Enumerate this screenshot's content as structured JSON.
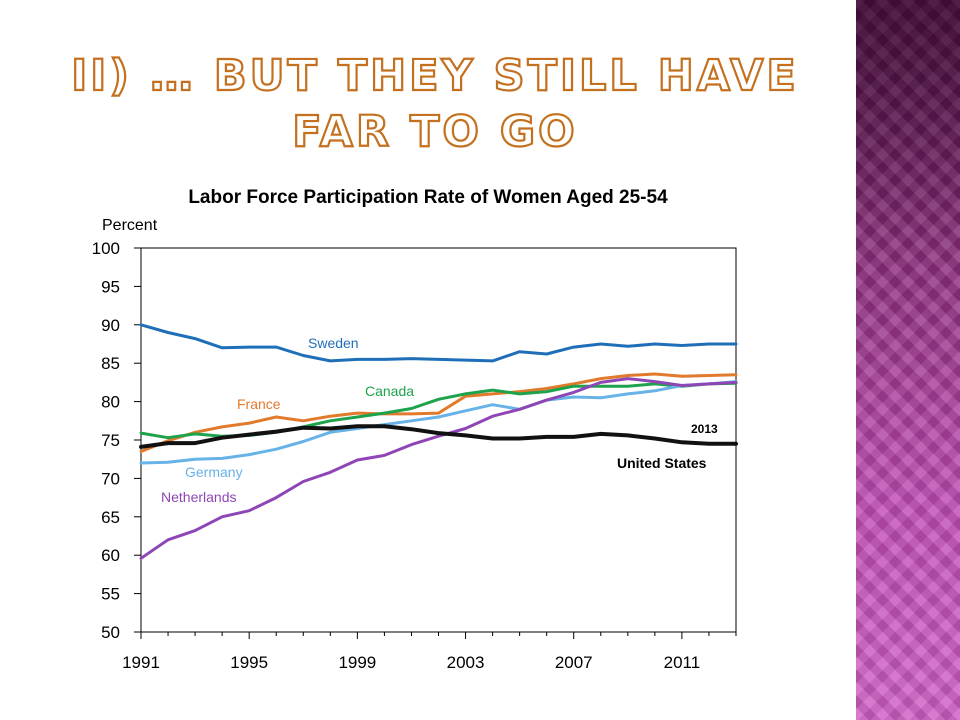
{
  "slide": {
    "title": "II) … But they still have far to go",
    "side_panel_color": "#b040a8"
  },
  "chart_data": {
    "type": "line",
    "title": "Labor Force Participation Rate of Women Aged 25-54",
    "ylabel": "Percent",
    "xlabel": "",
    "xlim": [
      1991,
      2013
    ],
    "ylim": [
      50,
      100
    ],
    "xticks": [
      1991,
      1995,
      1999,
      2003,
      2007,
      2011
    ],
    "yticks": [
      50,
      55,
      60,
      65,
      70,
      75,
      80,
      85,
      90,
      95,
      100
    ],
    "grid": false,
    "x": [
      1991,
      1992,
      1993,
      1994,
      1995,
      1996,
      1997,
      1998,
      1999,
      2000,
      2001,
      2002,
      2003,
      2004,
      2005,
      2006,
      2007,
      2008,
      2009,
      2010,
      2011,
      2012,
      2013
    ],
    "end_label": "2013",
    "series": [
      {
        "name": "Sweden",
        "color": "#1f6fb8",
        "values": [
          90.0,
          89.0,
          88.2,
          87.0,
          87.1,
          87.1,
          86.0,
          85.3,
          85.5,
          85.5,
          85.6,
          85.5,
          85.4,
          85.3,
          86.5,
          86.2,
          87.1,
          87.5,
          87.2,
          87.5,
          87.3,
          87.5,
          87.5
        ]
      },
      {
        "name": "France",
        "color": "#e27a2c",
        "values": [
          73.5,
          74.9,
          76.0,
          76.7,
          77.2,
          78.0,
          77.5,
          78.1,
          78.5,
          78.4,
          78.4,
          78.5,
          80.7,
          81.0,
          81.3,
          81.7,
          82.3,
          83.0,
          83.4,
          83.6,
          83.3,
          83.4,
          83.5
        ]
      },
      {
        "name": "Canada",
        "color": "#1ea34c",
        "values": [
          75.9,
          75.3,
          75.8,
          75.5,
          75.6,
          76.0,
          76.7,
          77.5,
          78.0,
          78.5,
          79.1,
          80.3,
          81.0,
          81.5,
          81.0,
          81.3,
          82.0,
          82.0,
          82.0,
          82.3,
          82.0,
          82.3,
          82.4
        ]
      },
      {
        "name": "Germany",
        "color": "#67b3e8",
        "values": [
          72.0,
          72.1,
          72.5,
          72.6,
          73.1,
          73.8,
          74.8,
          76.0,
          76.5,
          77.0,
          77.5,
          78.0,
          78.8,
          79.6,
          79.0,
          80.2,
          80.6,
          80.5,
          81.0,
          81.4,
          82.1,
          82.3,
          82.6
        ]
      },
      {
        "name": "Netherlands",
        "color": "#8e46b6",
        "values": [
          59.6,
          62.0,
          63.2,
          65.0,
          65.8,
          67.5,
          69.6,
          70.8,
          72.4,
          73.0,
          74.4,
          75.5,
          76.5,
          78.1,
          79.0,
          80.2,
          81.2,
          82.5,
          83.0,
          82.6,
          82.1,
          82.3,
          82.5
        ]
      },
      {
        "name": "United States",
        "color": "#111111",
        "values": [
          74.1,
          74.6,
          74.6,
          75.3,
          75.7,
          76.1,
          76.6,
          76.5,
          76.8,
          76.8,
          76.4,
          75.9,
          75.6,
          75.2,
          75.2,
          75.4,
          75.4,
          75.8,
          75.6,
          75.2,
          74.7,
          74.5,
          74.5
        ]
      }
    ]
  }
}
